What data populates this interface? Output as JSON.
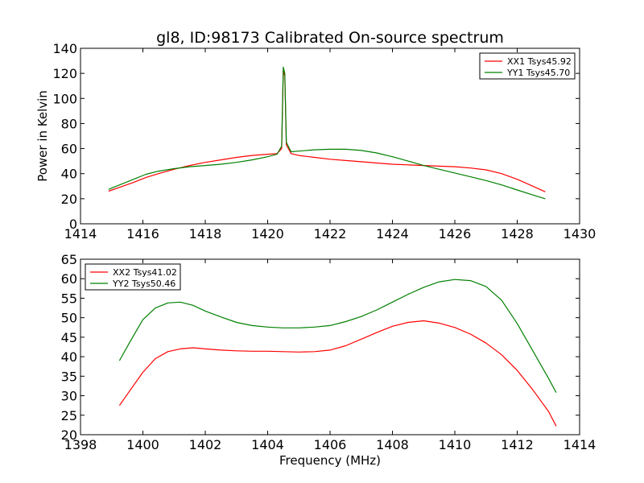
{
  "chart_data": [
    {
      "type": "line",
      "title": "gl8, ID:98173 Calibrated On-source spectrum",
      "xlabel": "",
      "ylabel": "Power in Kelvin",
      "xlim": [
        1414,
        1430
      ],
      "ylim": [
        0,
        140
      ],
      "xticks": [
        "1414",
        "1416",
        "1418",
        "1420",
        "1422",
        "1424",
        "1426",
        "1428",
        "1430"
      ],
      "yticks": [
        "0",
        "20",
        "40",
        "60",
        "80",
        "100",
        "120",
        "140"
      ],
      "legend_position": "top-right",
      "grid": false,
      "series": [
        {
          "name": "XX1 Tsys45.92",
          "color": "#ff0000",
          "x": [
            1414.9,
            1415.3,
            1415.7,
            1416.1,
            1416.5,
            1417.0,
            1417.5,
            1418.0,
            1418.5,
            1419.0,
            1419.5,
            1420.0,
            1420.3,
            1420.45,
            1420.5,
            1420.55,
            1420.6,
            1420.75,
            1421.0,
            1421.5,
            1422.0,
            1422.5,
            1423.0,
            1423.5,
            1424.0,
            1424.5,
            1425.0,
            1425.5,
            1426.0,
            1426.5,
            1427.0,
            1427.5,
            1428.0,
            1428.5,
            1428.9
          ],
          "y": [
            26,
            29.5,
            33,
            37,
            40,
            43.5,
            46.5,
            49,
            51,
            53,
            54.5,
            55.5,
            56,
            60,
            122,
            118,
            63,
            56,
            54.5,
            53,
            51.5,
            50.5,
            49.5,
            48.5,
            47.5,
            47,
            46.5,
            46,
            45.5,
            44.5,
            43,
            40,
            35.5,
            30,
            25.5
          ]
        },
        {
          "name": "YY1 Tsys45.70",
          "color": "#008000",
          "x": [
            1414.9,
            1415.3,
            1415.7,
            1416.1,
            1416.5,
            1417.0,
            1417.5,
            1418.0,
            1418.5,
            1419.0,
            1419.5,
            1420.0,
            1420.3,
            1420.45,
            1420.5,
            1420.55,
            1420.6,
            1420.75,
            1421.0,
            1421.5,
            1422.0,
            1422.5,
            1423.0,
            1423.5,
            1424.0,
            1424.5,
            1425.0,
            1425.5,
            1426.0,
            1426.5,
            1427.0,
            1427.5,
            1428.0,
            1428.5,
            1428.9
          ],
          "y": [
            27.5,
            31.5,
            35.5,
            39.5,
            42,
            44,
            45.5,
            46.5,
            47.5,
            49,
            51,
            53.5,
            55.5,
            62,
            125,
            120,
            65,
            57.5,
            58,
            59,
            59.5,
            59.5,
            58.5,
            56.5,
            53.5,
            50,
            46.5,
            43.5,
            40.5,
            37.5,
            34.5,
            31,
            27,
            23,
            20
          ]
        }
      ]
    },
    {
      "type": "line",
      "title": "",
      "xlabel": "Frequency (MHz)",
      "ylabel": "",
      "xlim": [
        1398,
        1414
      ],
      "ylim": [
        20,
        65
      ],
      "xticks": [
        "1398",
        "1400",
        "1402",
        "1404",
        "1406",
        "1408",
        "1410",
        "1412",
        "1414"
      ],
      "yticks": [
        "20",
        "25",
        "30",
        "35",
        "40",
        "45",
        "50",
        "55",
        "60",
        "65"
      ],
      "legend_position": "top-left",
      "grid": false,
      "series": [
        {
          "name": "XX2 Tsys41.02",
          "color": "#ff0000",
          "x": [
            1399.25,
            1399.6,
            1400.0,
            1400.4,
            1400.8,
            1401.2,
            1401.6,
            1402.0,
            1402.5,
            1403.0,
            1403.5,
            1404.0,
            1404.5,
            1405.0,
            1405.5,
            1406.0,
            1406.5,
            1407.0,
            1407.5,
            1408.0,
            1408.5,
            1409.0,
            1409.5,
            1410.0,
            1410.5,
            1411.0,
            1411.5,
            1412.0,
            1412.5,
            1413.0,
            1413.25
          ],
          "y": [
            27.5,
            31.5,
            36,
            39.5,
            41.3,
            42,
            42.3,
            42,
            41.7,
            41.5,
            41.4,
            41.4,
            41.3,
            41.2,
            41.3,
            41.7,
            42.8,
            44.5,
            46.2,
            47.8,
            48.8,
            49.2,
            48.6,
            47.5,
            45.8,
            43.5,
            40.5,
            36.5,
            31.5,
            26,
            22.2
          ]
        },
        {
          "name": "YY2 Tsys50.46",
          "color": "#008000",
          "x": [
            1399.25,
            1399.6,
            1400.0,
            1400.4,
            1400.8,
            1401.2,
            1401.6,
            1402.0,
            1402.5,
            1403.0,
            1403.5,
            1404.0,
            1404.5,
            1405.0,
            1405.5,
            1406.0,
            1406.5,
            1407.0,
            1407.5,
            1408.0,
            1408.5,
            1409.0,
            1409.5,
            1410.0,
            1410.5,
            1411.0,
            1411.5,
            1412.0,
            1412.5,
            1413.0,
            1413.25
          ],
          "y": [
            39,
            44,
            49.5,
            52.5,
            53.8,
            54,
            53.2,
            51.7,
            50.2,
            48.8,
            48,
            47.6,
            47.4,
            47.4,
            47.6,
            48,
            49,
            50.3,
            52,
            54,
            56,
            57.8,
            59.2,
            59.8,
            59.5,
            58,
            54.5,
            48.5,
            41.5,
            34.5,
            30.8
          ]
        }
      ]
    }
  ]
}
